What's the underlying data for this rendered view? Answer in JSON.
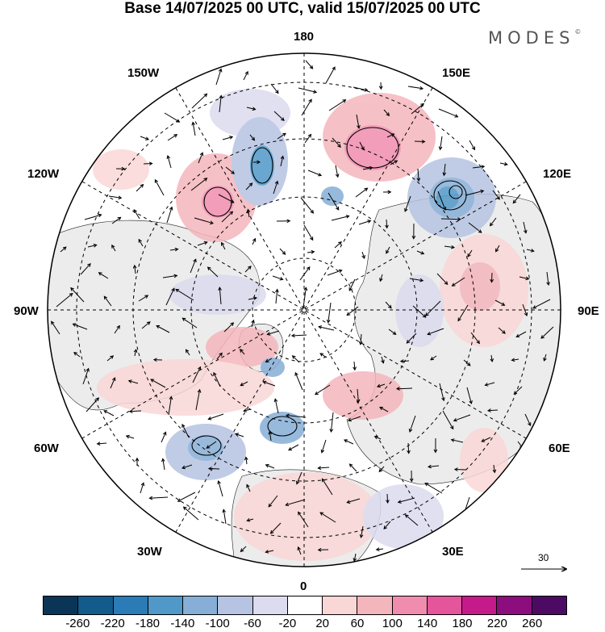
{
  "title": "Base 14/07/2025 00 UTC, valid 15/07/2025 00 UTC",
  "brand": "MODES",
  "brand_mark": "©",
  "lon_labels": {
    "top": "180",
    "bottom": "0",
    "left": "90W",
    "right": "90E",
    "upper_left_1": "150W",
    "upper_left_2": "120W",
    "upper_right_1": "150E",
    "upper_right_2": "120E",
    "lower_left_1": "60W",
    "lower_left_2": "30W",
    "lower_right_1": "60E",
    "lower_right_2": "30E"
  },
  "reference_vector": "30",
  "colorbar": {
    "colors": [
      "#0b3557",
      "#135b8a",
      "#2a7bb6",
      "#4f98c8",
      "#86aed6",
      "#b6c3e2",
      "#dcdbef",
      "#ffffff",
      "#f9d7d6",
      "#f4b6bd",
      "#f08cae",
      "#e4559c",
      "#c51b8a",
      "#8c0d7d",
      "#4d0a63"
    ],
    "ticks": [
      "-260",
      "-220",
      "-180",
      "-140",
      "-100",
      "-60",
      "-20",
      "20",
      "60",
      "100",
      "140",
      "180",
      "220",
      "260"
    ]
  },
  "colors": {
    "land": "#ececec",
    "ocean": "#ffffff",
    "grid": "#000000"
  }
}
